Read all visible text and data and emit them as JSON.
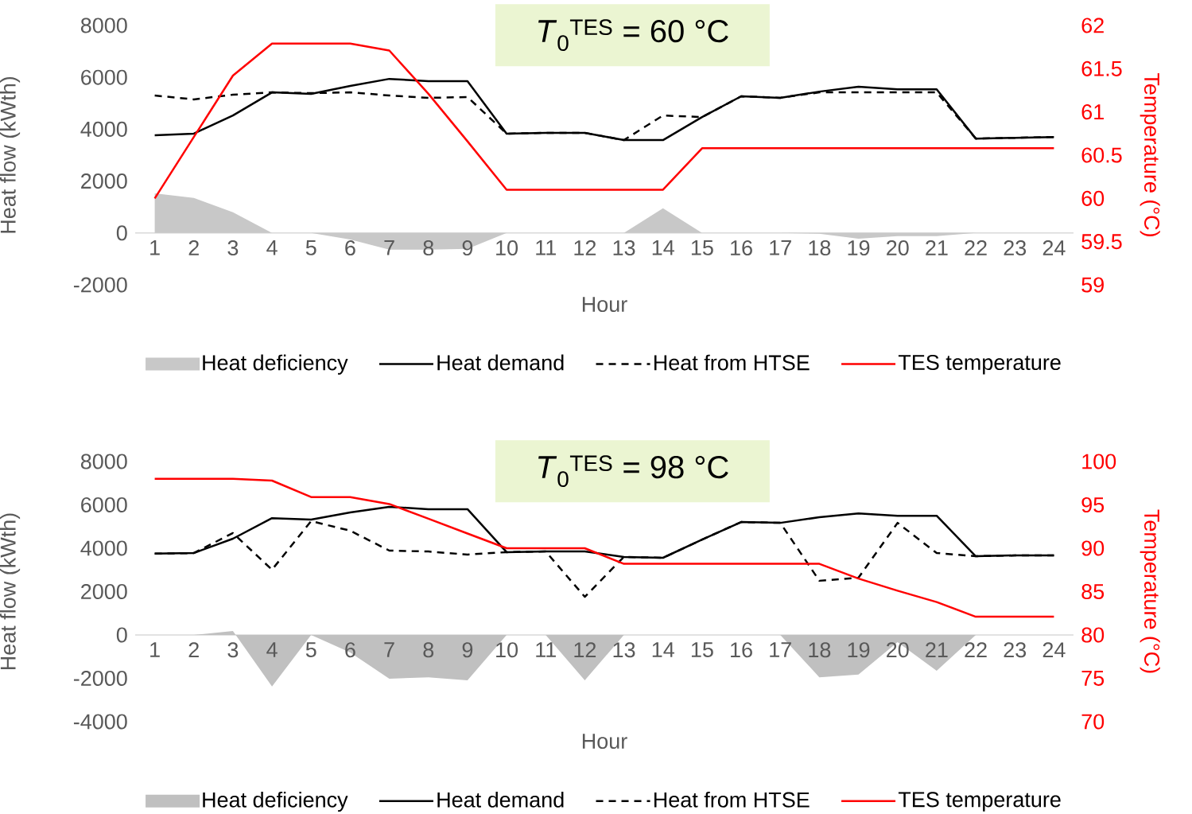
{
  "chart_data": [
    {
      "type": "line",
      "title": "*T*$_{0}$$^{TES}$ = 60 °C",
      "xlabel": "Hour",
      "ylabel": "Heat flow (kWth)",
      "y2label": "Temperature (°C)",
      "legend": "bottom",
      "categories": [
        "1",
        "2",
        "3",
        "4",
        "5",
        "6",
        "7",
        "8",
        "9",
        "10",
        "11",
        "12",
        "13",
        "14",
        "15",
        "16",
        "17",
        "18",
        "19",
        "20",
        "21",
        "22",
        "23",
        "24"
      ],
      "ylim": [
        -2000,
        8000
      ],
      "yticks": [
        -2000,
        0,
        2000,
        4000,
        6000,
        8000
      ],
      "y2lim": [
        59,
        62
      ],
      "y2ticks": [
        59,
        59.5,
        60,
        60.5,
        61,
        61.5,
        62
      ],
      "series": [
        {
          "name": "Heat deficiency",
          "type": "area",
          "color": "#c8c8c8",
          "values": [
            1530,
            1350,
            800,
            0,
            0,
            -250,
            -640,
            -640,
            -610,
            0,
            0,
            0,
            0,
            950,
            0,
            0,
            0,
            -30,
            -220,
            -120,
            -120,
            0,
            0,
            0
          ]
        },
        {
          "name": "Heat demand",
          "line_style": "solid",
          "color": "#000000",
          "values": [
            3770,
            3830,
            4530,
            5420,
            5360,
            5670,
            5940,
            5850,
            5850,
            3830,
            3860,
            3860,
            3580,
            3580,
            4470,
            5270,
            5210,
            5450,
            5640,
            5540,
            5540,
            3640,
            3670,
            3700
          ]
        },
        {
          "name": "Heat from HTSE",
          "line_style": "dashed",
          "color": "#000000",
          "values": [
            5300,
            5150,
            5330,
            5420,
            5390,
            5420,
            5300,
            5210,
            5240,
            3830,
            3860,
            3860,
            3580,
            4530,
            4470,
            5270,
            5210,
            5420,
            5420,
            5420,
            5420,
            3640,
            3670,
            3700
          ]
        },
        {
          "name": "TES temperature",
          "line_style": "solid",
          "axis": "y2",
          "color": "#ff0000",
          "values": [
            60.0,
            60.71,
            61.42,
            61.79,
            61.79,
            61.79,
            61.71,
            61.21,
            60.66,
            60.1,
            60.1,
            60.1,
            60.1,
            60.1,
            60.58,
            60.58,
            60.58,
            60.58,
            60.58,
            60.58,
            60.58,
            60.58,
            60.58,
            60.58
          ]
        }
      ]
    },
    {
      "type": "line",
      "title": "*T*$_{0}$$^{TES}$ = 98 °C",
      "xlabel": "Hour",
      "ylabel": "Heat flow (kWth)",
      "y2label": "Temperature (°C)",
      "legend": "bottom",
      "categories": [
        "1",
        "2",
        "3",
        "4",
        "5",
        "6",
        "7",
        "8",
        "9",
        "10",
        "11",
        "12",
        "13",
        "14",
        "15",
        "16",
        "17",
        "18",
        "19",
        "20",
        "21",
        "22",
        "23",
        "24"
      ],
      "ylim": [
        -4000,
        8000
      ],
      "yticks": [
        -4000,
        -2000,
        0,
        2000,
        4000,
        6000,
        8000
      ],
      "y2lim": [
        70,
        100
      ],
      "y2ticks": [
        70,
        75,
        80,
        85,
        90,
        95,
        100
      ],
      "series": [
        {
          "name": "Heat deficiency",
          "type": "area",
          "color": "#c0c0c0",
          "values": [
            0,
            0,
            180,
            -2380,
            0,
            -810,
            -2020,
            -1950,
            -2090,
            0,
            0,
            -2090,
            0,
            0,
            0,
            0,
            0,
            -1950,
            -1830,
            -330,
            -1650,
            0,
            0,
            0
          ]
        },
        {
          "name": "Heat demand",
          "line_style": "solid",
          "color": "#000000",
          "values": [
            3750,
            3780,
            4440,
            5390,
            5320,
            5650,
            5910,
            5800,
            5800,
            3820,
            3850,
            3850,
            3600,
            3560,
            4400,
            5210,
            5170,
            5430,
            5610,
            5500,
            5500,
            3630,
            3670,
            3670
          ]
        },
        {
          "name": "Heat from HTSE",
          "line_style": "dashed",
          "color": "#000000",
          "values": [
            3750,
            3780,
            4700,
            3010,
            5250,
            4810,
            3890,
            3850,
            3710,
            3820,
            3850,
            1760,
            3600,
            3560,
            4400,
            5210,
            5170,
            2500,
            2640,
            5170,
            3780,
            3630,
            3670,
            3670
          ]
        },
        {
          "name": "TES temperature",
          "line_style": "solid",
          "axis": "y2",
          "color": "#ff0000",
          "values": [
            98,
            98,
            98,
            97.8,
            95.9,
            95.9,
            95.1,
            93.4,
            91.7,
            90,
            90,
            90,
            88.2,
            88.2,
            88.2,
            88.2,
            88.2,
            88.2,
            86.5,
            85.1,
            83.8,
            82.1,
            82.1,
            82.1
          ]
        }
      ]
    }
  ]
}
